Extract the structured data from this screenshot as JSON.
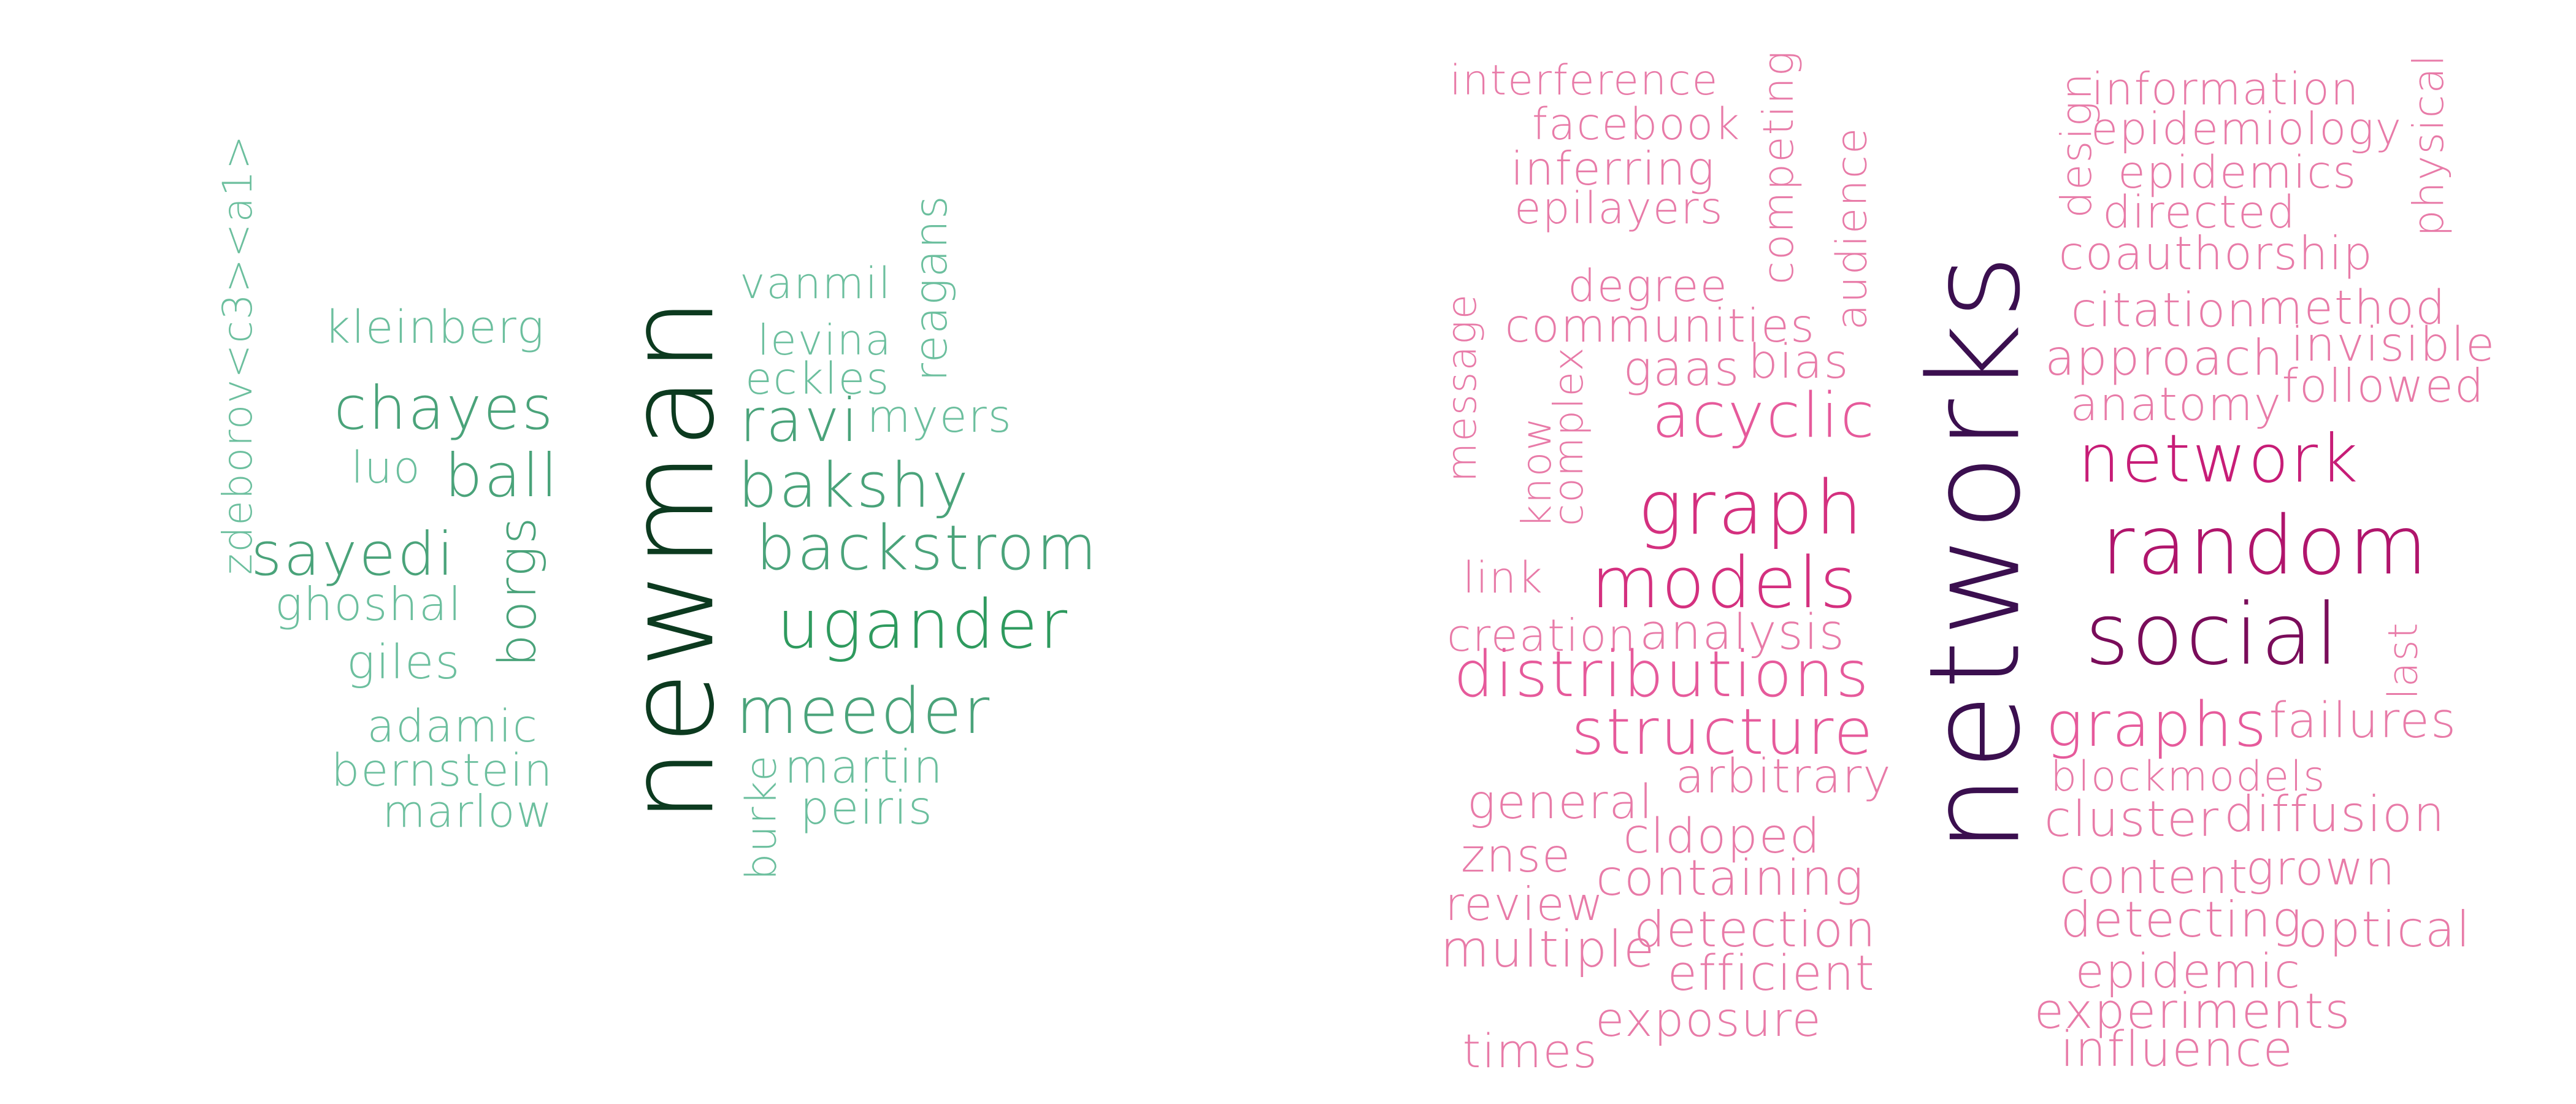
{
  "clouds": [
    {
      "id": "authors",
      "words": [
        {
          "text": "newman",
          "color": "#0c3a1f",
          "weight": 1.0
        },
        {
          "text": "zdeborov<c3><a1>",
          "color": "#6cbf9e",
          "weight": 0.16
        },
        {
          "text": "kleinberg",
          "color": "#6cbf9e",
          "weight": 0.18
        },
        {
          "text": "chayes",
          "color": "#4aa37a",
          "weight": 0.26
        },
        {
          "text": "luo",
          "color": "#6cbf9e",
          "weight": 0.16
        },
        {
          "text": "ball",
          "color": "#4aa37a",
          "weight": 0.26
        },
        {
          "text": "sayedi",
          "color": "#4aa37a",
          "weight": 0.26
        },
        {
          "text": "borgs",
          "color": "#4aa37a",
          "weight": 0.26
        },
        {
          "text": "ghoshal",
          "color": "#6cbf9e",
          "weight": 0.16
        },
        {
          "text": "giles",
          "color": "#6cbf9e",
          "weight": 0.16
        },
        {
          "text": "adamic",
          "color": "#6cbf9e",
          "weight": 0.16
        },
        {
          "text": "bernstein",
          "color": "#6cbf9e",
          "weight": 0.16
        },
        {
          "text": "marlow",
          "color": "#6cbf9e",
          "weight": 0.16
        },
        {
          "text": "vanmil",
          "color": "#6cbf9e",
          "weight": 0.16
        },
        {
          "text": "reagans",
          "color": "#6cbf9e",
          "weight": 0.16
        },
        {
          "text": "levina",
          "color": "#6cbf9e",
          "weight": 0.16
        },
        {
          "text": "eckles",
          "color": "#6cbf9e",
          "weight": 0.16
        },
        {
          "text": "ravi",
          "color": "#4aa37a",
          "weight": 0.26
        },
        {
          "text": "myers",
          "color": "#6cbf9e",
          "weight": 0.16
        },
        {
          "text": "bakshy",
          "color": "#4aa37a",
          "weight": 0.26
        },
        {
          "text": "backstrom",
          "color": "#4aa37a",
          "weight": 0.26
        },
        {
          "text": "ugander",
          "color": "#2e9a5e",
          "weight": 0.34
        },
        {
          "text": "meeder",
          "color": "#4aa37a",
          "weight": 0.26
        },
        {
          "text": "martin",
          "color": "#6cbf9e",
          "weight": 0.16
        },
        {
          "text": "burke",
          "color": "#6cbf9e",
          "weight": 0.16
        },
        {
          "text": "peiris",
          "color": "#6cbf9e",
          "weight": 0.16
        }
      ]
    },
    {
      "id": "title-words",
      "words": [
        {
          "text": "networks",
          "color": "#3b0f4f",
          "weight": 1.0
        },
        {
          "text": "interference",
          "color": "#e87ba8",
          "weight": 0.15
        },
        {
          "text": "facebook",
          "color": "#e87ba8",
          "weight": 0.15
        },
        {
          "text": "competing",
          "color": "#e87ba8",
          "weight": 0.15
        },
        {
          "text": "inferring",
          "color": "#e87ba8",
          "weight": 0.15
        },
        {
          "text": "epilayers",
          "color": "#e87ba8",
          "weight": 0.15
        },
        {
          "text": "audience",
          "color": "#e87ba8",
          "weight": 0.15
        },
        {
          "text": "degree",
          "color": "#e87ba8",
          "weight": 0.15
        },
        {
          "text": "communities",
          "color": "#e87ba8",
          "weight": 0.15
        },
        {
          "text": "message",
          "color": "#e87ba8",
          "weight": 0.15
        },
        {
          "text": "complex",
          "color": "#e87ba8",
          "weight": 0.15
        },
        {
          "text": "gaas",
          "color": "#e87ba8",
          "weight": 0.15
        },
        {
          "text": "bias",
          "color": "#e87ba8",
          "weight": 0.15
        },
        {
          "text": "know",
          "color": "#e87ba8",
          "weight": 0.15
        },
        {
          "text": "acyclic",
          "color": "#e65a9b",
          "weight": 0.22
        },
        {
          "text": "graph",
          "color": "#d4307f",
          "weight": 0.3
        },
        {
          "text": "link",
          "color": "#e87ba8",
          "weight": 0.15
        },
        {
          "text": "models",
          "color": "#d4307f",
          "weight": 0.3
        },
        {
          "text": "creation",
          "color": "#e87ba8",
          "weight": 0.15
        },
        {
          "text": "analysis",
          "color": "#e87ba8",
          "weight": 0.15
        },
        {
          "text": "distributions",
          "color": "#e65a9b",
          "weight": 0.22
        },
        {
          "text": "structure",
          "color": "#e65a9b",
          "weight": 0.22
        },
        {
          "text": "arbitrary",
          "color": "#e87ba8",
          "weight": 0.15
        },
        {
          "text": "general",
          "color": "#e87ba8",
          "weight": 0.15
        },
        {
          "text": "cldoped",
          "color": "#e87ba8",
          "weight": 0.15
        },
        {
          "text": "znse",
          "color": "#e87ba8",
          "weight": 0.15
        },
        {
          "text": "containing",
          "color": "#e87ba8",
          "weight": 0.15
        },
        {
          "text": "review",
          "color": "#e87ba8",
          "weight": 0.15
        },
        {
          "text": "detection",
          "color": "#e87ba8",
          "weight": 0.15
        },
        {
          "text": "multiple",
          "color": "#e87ba8",
          "weight": 0.15
        },
        {
          "text": "efficient",
          "color": "#e87ba8",
          "weight": 0.15
        },
        {
          "text": "exposure",
          "color": "#e87ba8",
          "weight": 0.15
        },
        {
          "text": "times",
          "color": "#e87ba8",
          "weight": 0.15
        },
        {
          "text": "design",
          "color": "#e87ba8",
          "weight": 0.15
        },
        {
          "text": "information",
          "color": "#e87ba8",
          "weight": 0.15
        },
        {
          "text": "epidemiology",
          "color": "#e87ba8",
          "weight": 0.15
        },
        {
          "text": "epidemics",
          "color": "#e87ba8",
          "weight": 0.15
        },
        {
          "text": "directed",
          "color": "#e87ba8",
          "weight": 0.15
        },
        {
          "text": "physical",
          "color": "#e87ba8",
          "weight": 0.15
        },
        {
          "text": "coauthorship",
          "color": "#e87ba8",
          "weight": 0.15
        },
        {
          "text": "citation",
          "color": "#e87ba8",
          "weight": 0.15
        },
        {
          "text": "method",
          "color": "#e87ba8",
          "weight": 0.15
        },
        {
          "text": "approach",
          "color": "#e87ba8",
          "weight": 0.15
        },
        {
          "text": "invisible",
          "color": "#e87ba8",
          "weight": 0.15
        },
        {
          "text": "anatomy",
          "color": "#e87ba8",
          "weight": 0.15
        },
        {
          "text": "followed",
          "color": "#e87ba8",
          "weight": 0.15
        },
        {
          "text": "network",
          "color": "#c71d77",
          "weight": 0.3
        },
        {
          "text": "random",
          "color": "#b0156c",
          "weight": 0.4
        },
        {
          "text": "social",
          "color": "#7a0c5a",
          "weight": 0.4
        },
        {
          "text": "last",
          "color": "#e87ba8",
          "weight": 0.15
        },
        {
          "text": "graphs",
          "color": "#e65a9b",
          "weight": 0.22
        },
        {
          "text": "failures",
          "color": "#e87ba8",
          "weight": 0.15
        },
        {
          "text": "blockmodels",
          "color": "#e87ba8",
          "weight": 0.15
        },
        {
          "text": "cluster",
          "color": "#e87ba8",
          "weight": 0.15
        },
        {
          "text": "diffusion",
          "color": "#e87ba8",
          "weight": 0.15
        },
        {
          "text": "content",
          "color": "#e87ba8",
          "weight": 0.15
        },
        {
          "text": "grown",
          "color": "#e87ba8",
          "weight": 0.15
        },
        {
          "text": "detecting",
          "color": "#e87ba8",
          "weight": 0.15
        },
        {
          "text": "optical",
          "color": "#e87ba8",
          "weight": 0.15
        },
        {
          "text": "epidemic",
          "color": "#e87ba8",
          "weight": 0.15
        },
        {
          "text": "experiments",
          "color": "#e87ba8",
          "weight": 0.15
        },
        {
          "text": "influence",
          "color": "#e87ba8",
          "weight": 0.15
        }
      ]
    }
  ]
}
